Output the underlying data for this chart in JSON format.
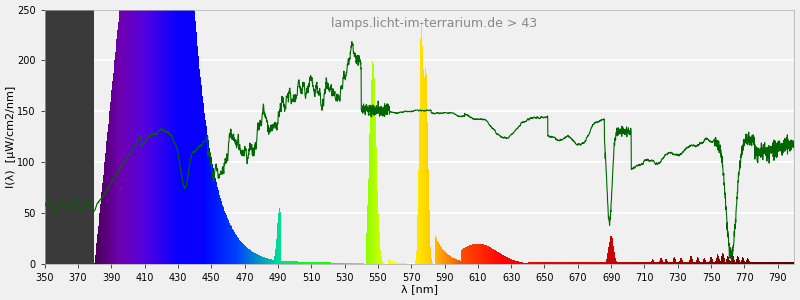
{
  "title": "lamps.licht-im-terrarium.de > 43",
  "xlabel": "λ [nm]",
  "ylabel": "I(λ)  [μW/cm2/nm]",
  "xlim": [
    350,
    800
  ],
  "ylim": [
    0,
    250
  ],
  "yticks": [
    0,
    50,
    100,
    150,
    200,
    250
  ],
  "xticks": [
    350,
    370,
    390,
    410,
    430,
    450,
    470,
    490,
    510,
    530,
    550,
    570,
    590,
    610,
    630,
    650,
    670,
    690,
    710,
    730,
    750,
    770,
    790
  ],
  "background_color": "#f0f0f0",
  "title_color": "#888888",
  "title_fontsize": 9,
  "axis_label_fontsize": 8,
  "tick_fontsize": 7,
  "grid_color": "#ffffff",
  "line_color": "#006600",
  "line_width": 0.8
}
